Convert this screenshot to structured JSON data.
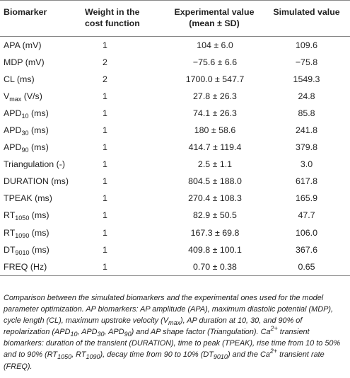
{
  "headers": {
    "biomarker": "Biomarker",
    "weight_line1": "Weight in the",
    "weight_line2": "cost function",
    "exp_line1": "Experimental value",
    "exp_line2": "(mean ± SD)",
    "simulated": "Simulated value"
  },
  "rows": [
    {
      "name": "APA (mV)",
      "weight": "1",
      "exp": "104 ± 6.0",
      "sim": "109.6"
    },
    {
      "name": "MDP (mV)",
      "weight": "2",
      "exp": "−75.6 ± 6.6",
      "sim": "−75.8"
    },
    {
      "name": "CL (ms)",
      "weight": "2",
      "exp": "1700.0 ± 547.7",
      "sim": "1549.3"
    },
    {
      "name_main": "V",
      "name_sub": "max",
      "name_unit": " (V/s)",
      "weight": "1",
      "exp": "27.8 ± 26.3",
      "sim": "24.8"
    },
    {
      "name_main": "APD",
      "name_sub": "10",
      "name_unit": " (ms)",
      "weight": "1",
      "exp": "74.1 ± 26.3",
      "sim": "85.8"
    },
    {
      "name_main": "APD",
      "name_sub": "30",
      "name_unit": " (ms)",
      "weight": "1",
      "exp": "180 ± 58.6",
      "sim": "241.8"
    },
    {
      "name_main": "APD",
      "name_sub": "90",
      "name_unit": " (ms)",
      "weight": "1",
      "exp": "414.7 ± 119.4",
      "sim": "379.8"
    },
    {
      "name": "Triangulation (-)",
      "weight": "1",
      "exp": "2.5 ± 1.1",
      "sim": "3.0"
    },
    {
      "name": "DURATION (ms)",
      "weight": "1",
      "exp": "804.5 ± 188.0",
      "sim": "617.8"
    },
    {
      "name": "TPEAK (ms)",
      "weight": "1",
      "exp": "270.4 ± 108.3",
      "sim": "165.9"
    },
    {
      "name_main": "RT",
      "name_sub": "1050",
      "name_unit": " (ms)",
      "weight": "1",
      "exp": "82.9 ± 50.5",
      "sim": "47.7"
    },
    {
      "name_main": "RT",
      "name_sub": "1090",
      "name_unit": " (ms)",
      "weight": "1",
      "exp": "167.3 ± 69.8",
      "sim": "106.0"
    },
    {
      "name_main": "DT",
      "name_sub": "9010",
      "name_unit": " (ms)",
      "weight": "1",
      "exp": "409.8 ± 100.1",
      "sim": "367.6"
    },
    {
      "name": "FREQ (Hz)",
      "weight": "1",
      "exp": "0.70 ± 0.38",
      "sim": "0.65"
    }
  ],
  "caption": {
    "s1": "Comparison between the simulated biomarkers and the experimental ones used for the model parameter optimization. AP biomarkers: AP amplitude (APA), maximum diastolic potential (MDP), cycle length (CL), maximum upstroke velocity (V",
    "s1_sub": "max",
    "s2": "), AP duration at 10, 30, and 90% of repolarization (APD",
    "s2_sub_a": "10",
    "s2_mid_a": ", APD",
    "s2_sub_b": "30",
    "s2_mid_b": ", APD",
    "s2_sub_c": "90",
    "s3": ") and AP shape factor (Triangulation). Ca",
    "s3_sup": "2+",
    "s4": " transient biomarkers: duration of the transient (DURATION), time to peak (TPEAK), rise time from 10 to 50% and to 90% (RT",
    "s4_sub_a": "1050",
    "s4_mid": ", RT",
    "s4_sub_b": "1090",
    "s5": "), decay time from 90 to 10% (DT",
    "s5_sub": "9010",
    "s6": ") and the Ca",
    "s6_sup": "2+",
    "s7": " transient rate (FREQ)."
  }
}
